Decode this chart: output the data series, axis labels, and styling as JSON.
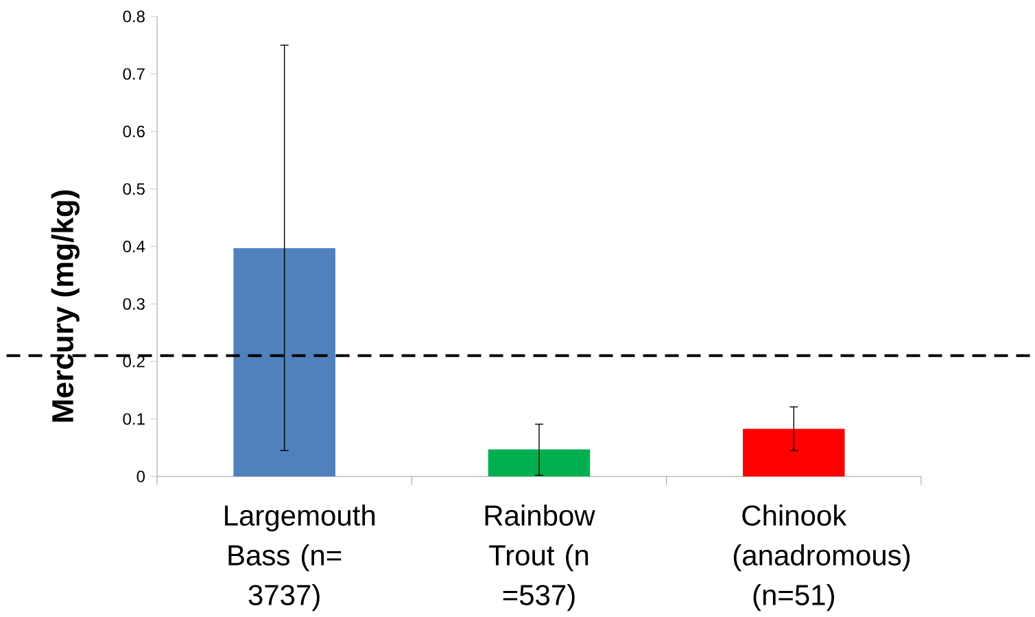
{
  "chart_data": {
    "type": "bar",
    "ylabel": "Mercury (mg/kg)",
    "categories": [
      "Largemouth Bass (n= 3737)",
      "Rainbow Trout (n =537)",
      "Chinook (anadromous) (n=51)"
    ],
    "values": [
      0.397,
      0.047,
      0.083
    ],
    "colors": [
      "#4f81bd",
      "#00b050",
      "#ff0000"
    ],
    "errors": [
      [
        0.045,
        0.75
      ],
      [
        0.002,
        0.091
      ],
      [
        0.045,
        0.121
      ]
    ],
    "ylim": [
      0,
      0.8
    ],
    "yticks": [
      0,
      0.1,
      0.2,
      0.3,
      0.4,
      0.5,
      0.6,
      0.7,
      0.8
    ],
    "ref_lines": [
      {
        "axis": "y",
        "value": 0.21,
        "line_style": "dashed",
        "color": "#000000"
      }
    ]
  }
}
